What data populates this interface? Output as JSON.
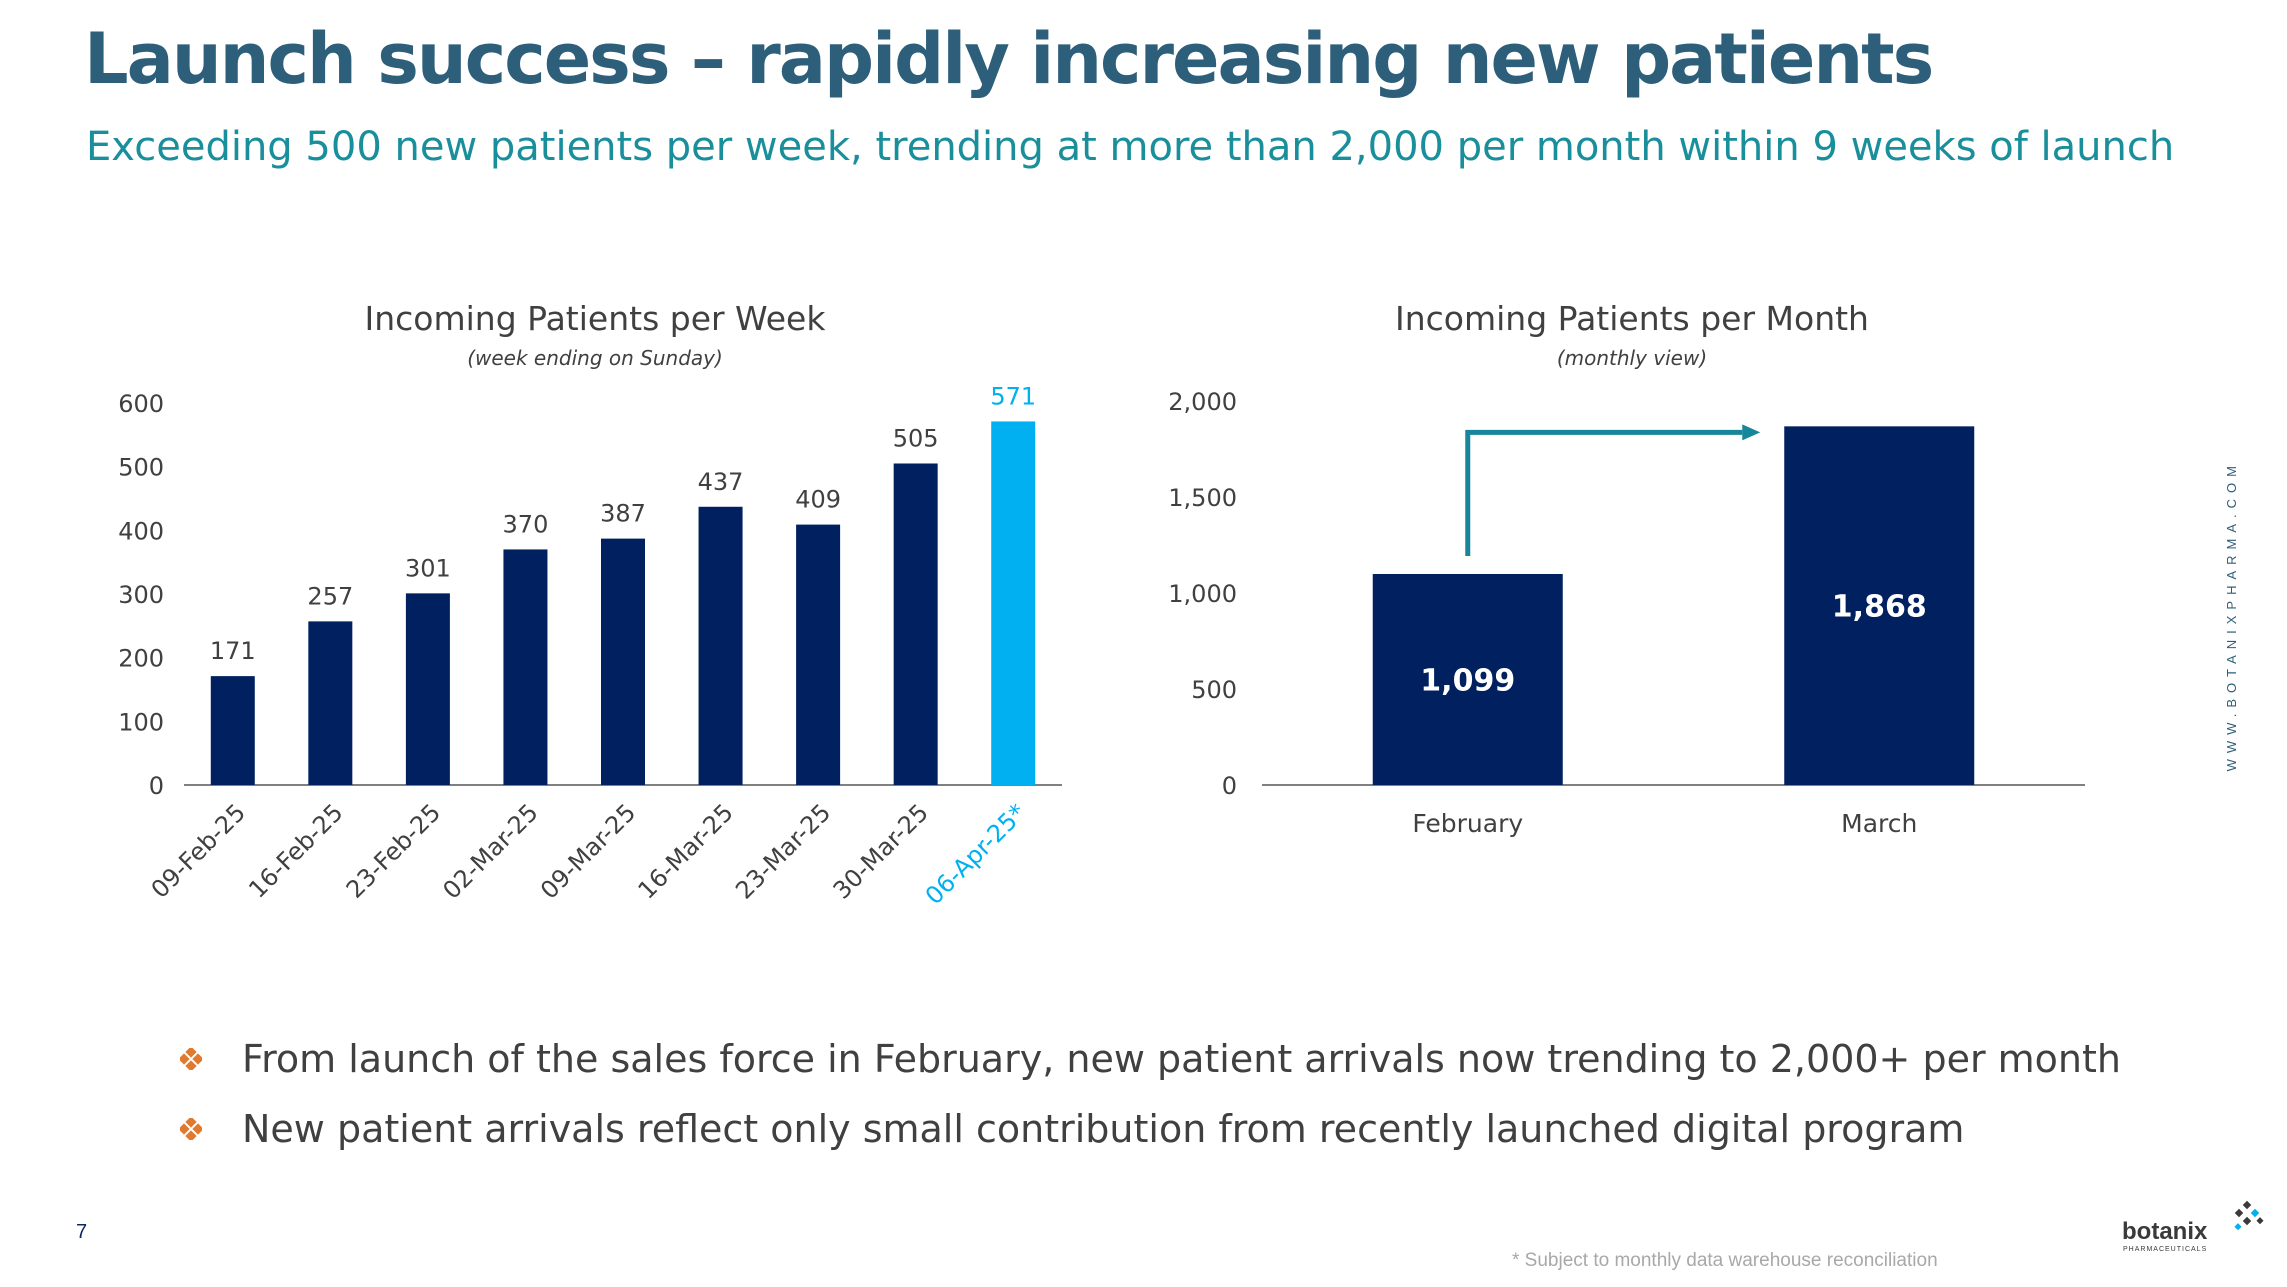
{
  "title": "Launch success – rapidly increasing new patients",
  "subtitle": "Exceeding 500 new patients per week, trending at more than 2,000 per month within 9 weeks of launch",
  "colors": {
    "title": "#2e5f7a",
    "subtitle": "#1a8f9c",
    "bar": "#002060",
    "highlight": "#00b0f0",
    "arrow": "#17869a",
    "bullet": "#e07a2f"
  },
  "chart_data": [
    {
      "type": "bar",
      "title": "Incoming Patients per Week",
      "subtitle": "(week ending on Sunday)",
      "categories": [
        "09-Feb-25",
        "16-Feb-25",
        "23-Feb-25",
        "02-Mar-25",
        "09-Mar-25",
        "16-Mar-25",
        "23-Mar-25",
        "30-Mar-25",
        "06-Apr-25*"
      ],
      "values": [
        171,
        257,
        301,
        370,
        387,
        437,
        409,
        505,
        571
      ],
      "value_labels": [
        "171",
        "257",
        "301",
        "370",
        "387",
        "437",
        "409",
        "505",
        "571"
      ],
      "highlight_index": 8,
      "yticks": [
        0,
        100,
        200,
        300,
        400,
        500,
        600
      ],
      "ytick_labels": [
        "0",
        "100",
        "200",
        "300",
        "400",
        "500",
        "600"
      ],
      "ylim": [
        0,
        600
      ],
      "xlabel": "",
      "ylabel": "",
      "grid": false
    },
    {
      "type": "bar",
      "title": "Incoming Patients per Month",
      "subtitle": "(monthly view)",
      "categories": [
        "February",
        "March"
      ],
      "values": [
        1099,
        1868
      ],
      "value_labels": [
        "1,099",
        "1,868"
      ],
      "yticks": [
        0,
        500,
        1000,
        1500,
        2000
      ],
      "ytick_labels": [
        "0",
        "500",
        "1,000",
        "1,500",
        "2,000"
      ],
      "ylim": [
        0,
        2000
      ],
      "annotation": "arrow from February to March",
      "xlabel": "",
      "ylabel": "",
      "grid": false
    }
  ],
  "bullets": [
    "From launch of the sales force in February, new patient arrivals now trending to 2,000+ per month",
    "New patient arrivals reflect only small contribution from recently launched digital program"
  ],
  "page_number": "7",
  "footnote": "* Subject to monthly data warehouse reconciliation",
  "website": "WWW.BOTANIXPHARMA.COM",
  "logo": {
    "word": "botanix",
    "sub": "PHARMACEUTICALS"
  }
}
